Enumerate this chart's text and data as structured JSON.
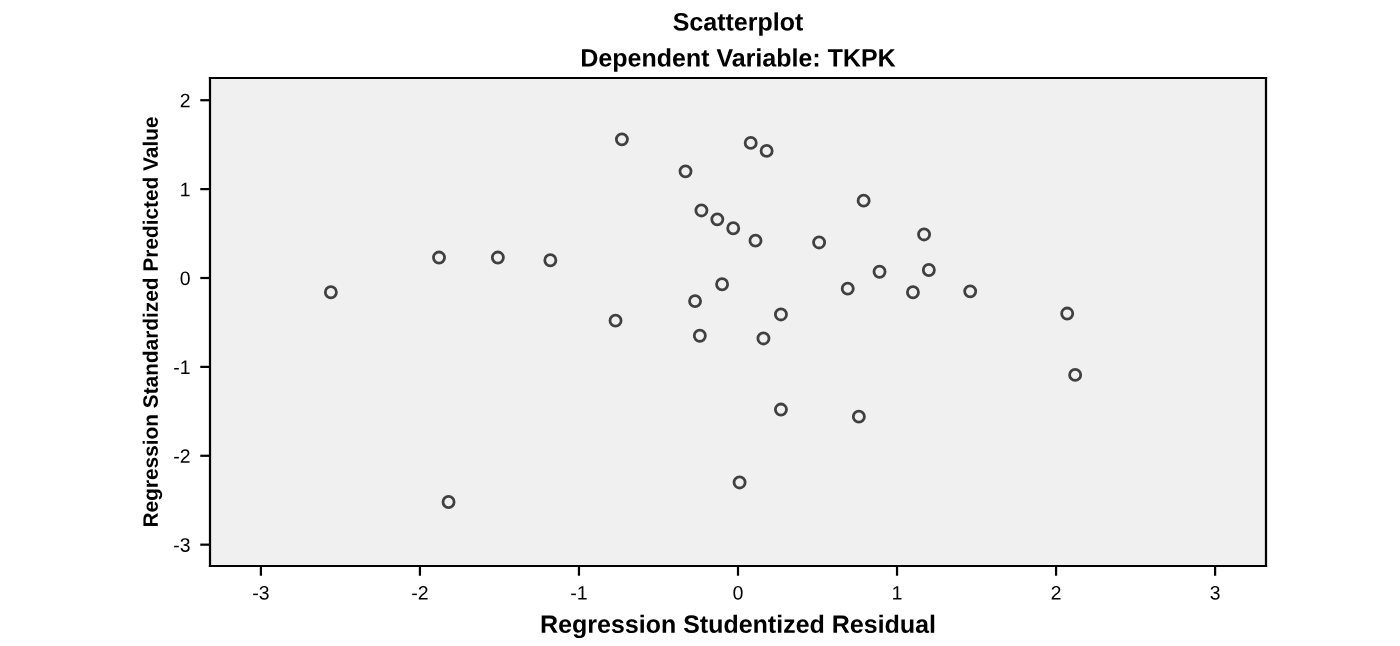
{
  "chart_data": {
    "type": "scatter",
    "title": "Scatterplot",
    "subtitle": "Dependent Variable: TKPK",
    "xlabel": "Regression Studentized Residual",
    "ylabel": "Regression Standardized Predicted Value",
    "marker": "circle",
    "grid": false,
    "xlim": [
      -3.32,
      3.32
    ],
    "ylim": [
      -3.24,
      2.25
    ],
    "xticks": [
      -3,
      -2,
      -1,
      0,
      1,
      2,
      3
    ],
    "yticks": [
      -3,
      -2,
      -1,
      0,
      1,
      2
    ],
    "series": [
      {
        "color": "#404040",
        "x": [
          -2.56,
          -1.88,
          -1.51,
          -1.18,
          -0.73,
          -0.33,
          -0.23,
          -0.13,
          -0.03,
          0.11,
          -0.1,
          -0.27,
          -0.77,
          -0.24,
          0.16,
          -1.82,
          0.01,
          0.08,
          0.18,
          0.79,
          0.51,
          1.17,
          0.89,
          1.2,
          0.69,
          1.1,
          1.46,
          0.27,
          2.07,
          2.12,
          0.27,
          0.76
        ],
        "values": [
          -0.16,
          0.23,
          0.23,
          0.2,
          1.56,
          1.2,
          0.76,
          0.66,
          0.56,
          0.42,
          -0.07,
          -0.26,
          -0.48,
          -0.65,
          -0.68,
          -2.52,
          -2.3,
          1.52,
          1.43,
          0.87,
          0.4,
          0.49,
          0.07,
          0.09,
          -0.12,
          -0.16,
          -0.15,
          -0.41,
          -0.4,
          -1.09,
          -1.48,
          -1.56
        ]
      }
    ]
  }
}
